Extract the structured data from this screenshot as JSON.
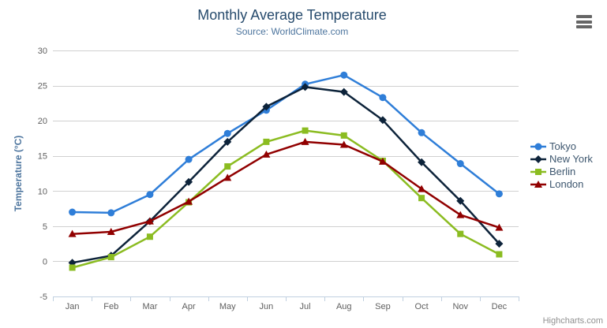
{
  "header": {
    "title": "Monthly Average Temperature",
    "subtitle": "Source: WorldClimate.com",
    "title_color": "#274b6d",
    "subtitle_color": "#4d759e"
  },
  "export_menu": {
    "icon": "hamburger-menu",
    "color": "#666666"
  },
  "credits": {
    "label": "Highcharts.com",
    "color": "#909090"
  },
  "chart_data": {
    "type": "line",
    "title": "Monthly Average Temperature",
    "subtitle": "Source: WorldClimate.com",
    "categories": [
      "Jan",
      "Feb",
      "Mar",
      "Apr",
      "May",
      "Jun",
      "Jul",
      "Aug",
      "Sep",
      "Oct",
      "Nov",
      "Dec"
    ],
    "xlabel": "",
    "ylabel": "Temperature (°C)",
    "ylim": [
      -5,
      30
    ],
    "yticks": [
      -5,
      0,
      5,
      10,
      15,
      20,
      25,
      30
    ],
    "grid": true,
    "legend_position": "right",
    "series": [
      {
        "name": "Tokyo",
        "color": "#2f7ed8",
        "marker": "circle",
        "values": [
          7.0,
          6.9,
          9.5,
          14.5,
          18.2,
          21.5,
          25.2,
          26.5,
          23.3,
          18.3,
          13.9,
          9.6
        ]
      },
      {
        "name": "New York",
        "color": "#0d233a",
        "marker": "diamond",
        "values": [
          -0.2,
          0.8,
          5.7,
          11.3,
          17.0,
          22.0,
          24.8,
          24.1,
          20.1,
          14.1,
          8.6,
          2.5
        ]
      },
      {
        "name": "Berlin",
        "color": "#8bbc21",
        "marker": "square",
        "values": [
          -0.9,
          0.6,
          3.5,
          8.4,
          13.5,
          17.0,
          18.6,
          17.9,
          14.3,
          9.0,
          3.9,
          1.0
        ]
      },
      {
        "name": "London",
        "color": "#910000",
        "marker": "triangle",
        "values": [
          3.9,
          4.2,
          5.7,
          8.5,
          11.9,
          15.2,
          17.0,
          16.6,
          14.2,
          10.3,
          6.6,
          4.8
        ]
      }
    ],
    "axis_colors": {
      "grid": "#d0d0d0",
      "axis_line": "#c0d0e0",
      "tick_label": "#606060",
      "axis_title": "#4d759e",
      "legend_text": "#3e576f"
    }
  }
}
